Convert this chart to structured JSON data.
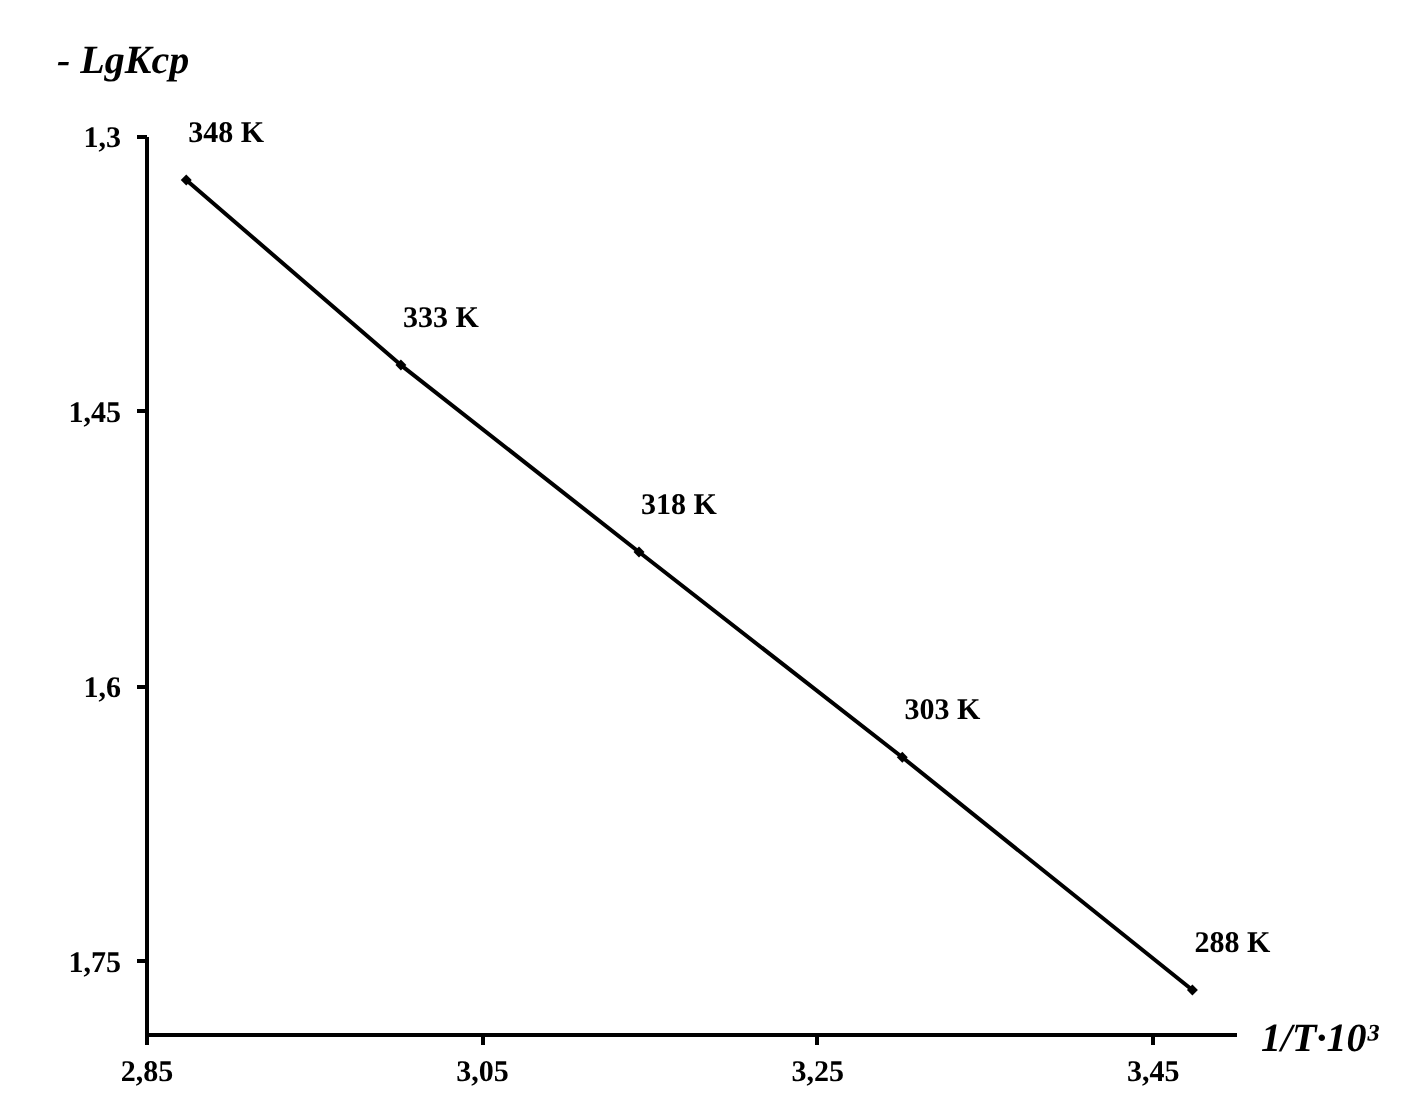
{
  "chart_data": {
    "type": "line",
    "xlabel": "1/T·10³",
    "ylabel": "- LgKcp",
    "x": [
      2.874,
      3.002,
      3.144,
      3.301,
      3.474
    ],
    "series": [
      {
        "color": "#000000",
        "values": [
          1.324,
          1.425,
          1.527,
          1.639,
          1.766
        ]
      }
    ],
    "xlim": [
      2.85,
      3.5
    ],
    "ylim": [
      1.79,
      1.3
    ],
    "xticks": [
      {
        "value": 2.85,
        "label": "2,85"
      },
      {
        "value": 3.05,
        "label": "3,05"
      },
      {
        "value": 3.25,
        "label": "3,25"
      },
      {
        "value": 3.45,
        "label": "3,45"
      }
    ],
    "yticks": [
      {
        "value": 1.3,
        "label": "1,3"
      },
      {
        "value": 1.45,
        "label": "1,45"
      },
      {
        "value": 1.6,
        "label": "1,6"
      },
      {
        "value": 1.75,
        "label": "1,75"
      }
    ],
    "annotations": [
      {
        "text": "348 K",
        "x": 2.874,
        "y": 1.324
      },
      {
        "text": "333 K",
        "x": 3.002,
        "y": 1.425
      },
      {
        "text": "318 K",
        "x": 3.144,
        "y": 1.527
      },
      {
        "text": "303 K",
        "x": 3.301,
        "y": 1.639
      },
      {
        "text": "288 K",
        "x": 3.474,
        "y": 1.766
      }
    ],
    "grid": false,
    "marker": "diamond",
    "line_style": "solid"
  }
}
